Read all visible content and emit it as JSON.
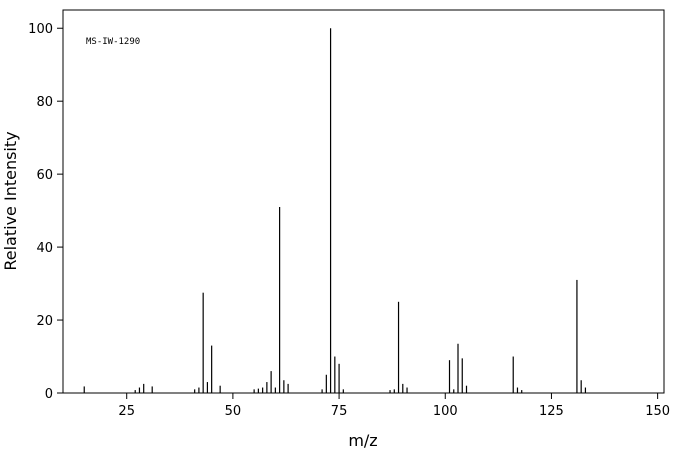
{
  "chart_data": {
    "type": "stem",
    "annotation": "MS-IW-1290",
    "xlabel": "m/z",
    "ylabel": "Relative Intensity",
    "x": [
      15,
      27,
      28,
      29,
      31,
      41,
      42,
      43,
      44,
      45,
      47,
      55,
      56,
      57,
      58,
      59,
      60,
      61,
      62,
      63,
      71,
      72,
      73,
      74,
      75,
      76,
      87,
      88,
      89,
      90,
      91,
      101,
      102,
      103,
      104,
      105,
      116,
      117,
      118,
      131,
      132,
      133
    ],
    "values": [
      1.8,
      0.8,
      1.5,
      2.5,
      1.8,
      1.0,
      1.5,
      27.5,
      3.0,
      13.0,
      2.0,
      1.0,
      1.2,
      1.5,
      3.0,
      6.0,
      1.5,
      51,
      3.5,
      2.5,
      1.0,
      5.0,
      100,
      10,
      8.0,
      1.0,
      0.8,
      1.0,
      25,
      2.5,
      1.5,
      9.0,
      1.0,
      13.5,
      9.5,
      2.0,
      10,
      1.5,
      0.8,
      31,
      3.5,
      1.5
    ],
    "color": "#000000",
    "xlim": [
      10,
      151.5
    ],
    "ylim": [
      0,
      105
    ],
    "xticks": [
      25,
      50,
      75,
      100,
      125,
      150
    ],
    "yticks": [
      0,
      20,
      40,
      60,
      80,
      100
    ]
  }
}
